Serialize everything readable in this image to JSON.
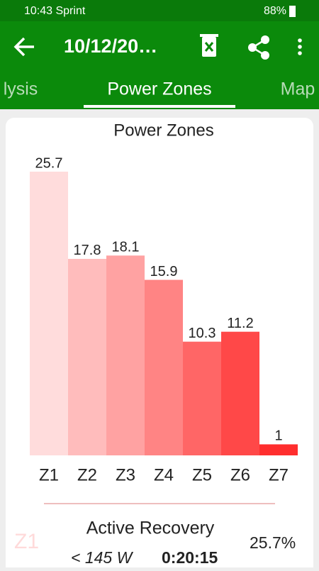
{
  "status_bar": {
    "time": "10:43 Sprint",
    "battery": "88%"
  },
  "app_bar": {
    "title": "10/12/20…"
  },
  "tabs": [
    "lysis",
    "Power Zones",
    "Map"
  ],
  "chart_data": {
    "type": "bar",
    "title": "Power Zones",
    "categories": [
      "Z1",
      "Z2",
      "Z3",
      "Z4",
      "Z5",
      "Z6",
      "Z7"
    ],
    "values": [
      25.7,
      17.8,
      18.1,
      15.9,
      10.3,
      11.2,
      1
    ],
    "colors": [
      "#ffdcdc",
      "#ffbcbc",
      "#ffa2a2",
      "#ff8484",
      "#ff6666",
      "#ff4848",
      "#ff2e2e"
    ]
  },
  "zone_detail": {
    "zone": "Z1",
    "name": "Active Recovery",
    "range": "< 145 W",
    "time": "0:20:15",
    "percent": "25.7%"
  }
}
